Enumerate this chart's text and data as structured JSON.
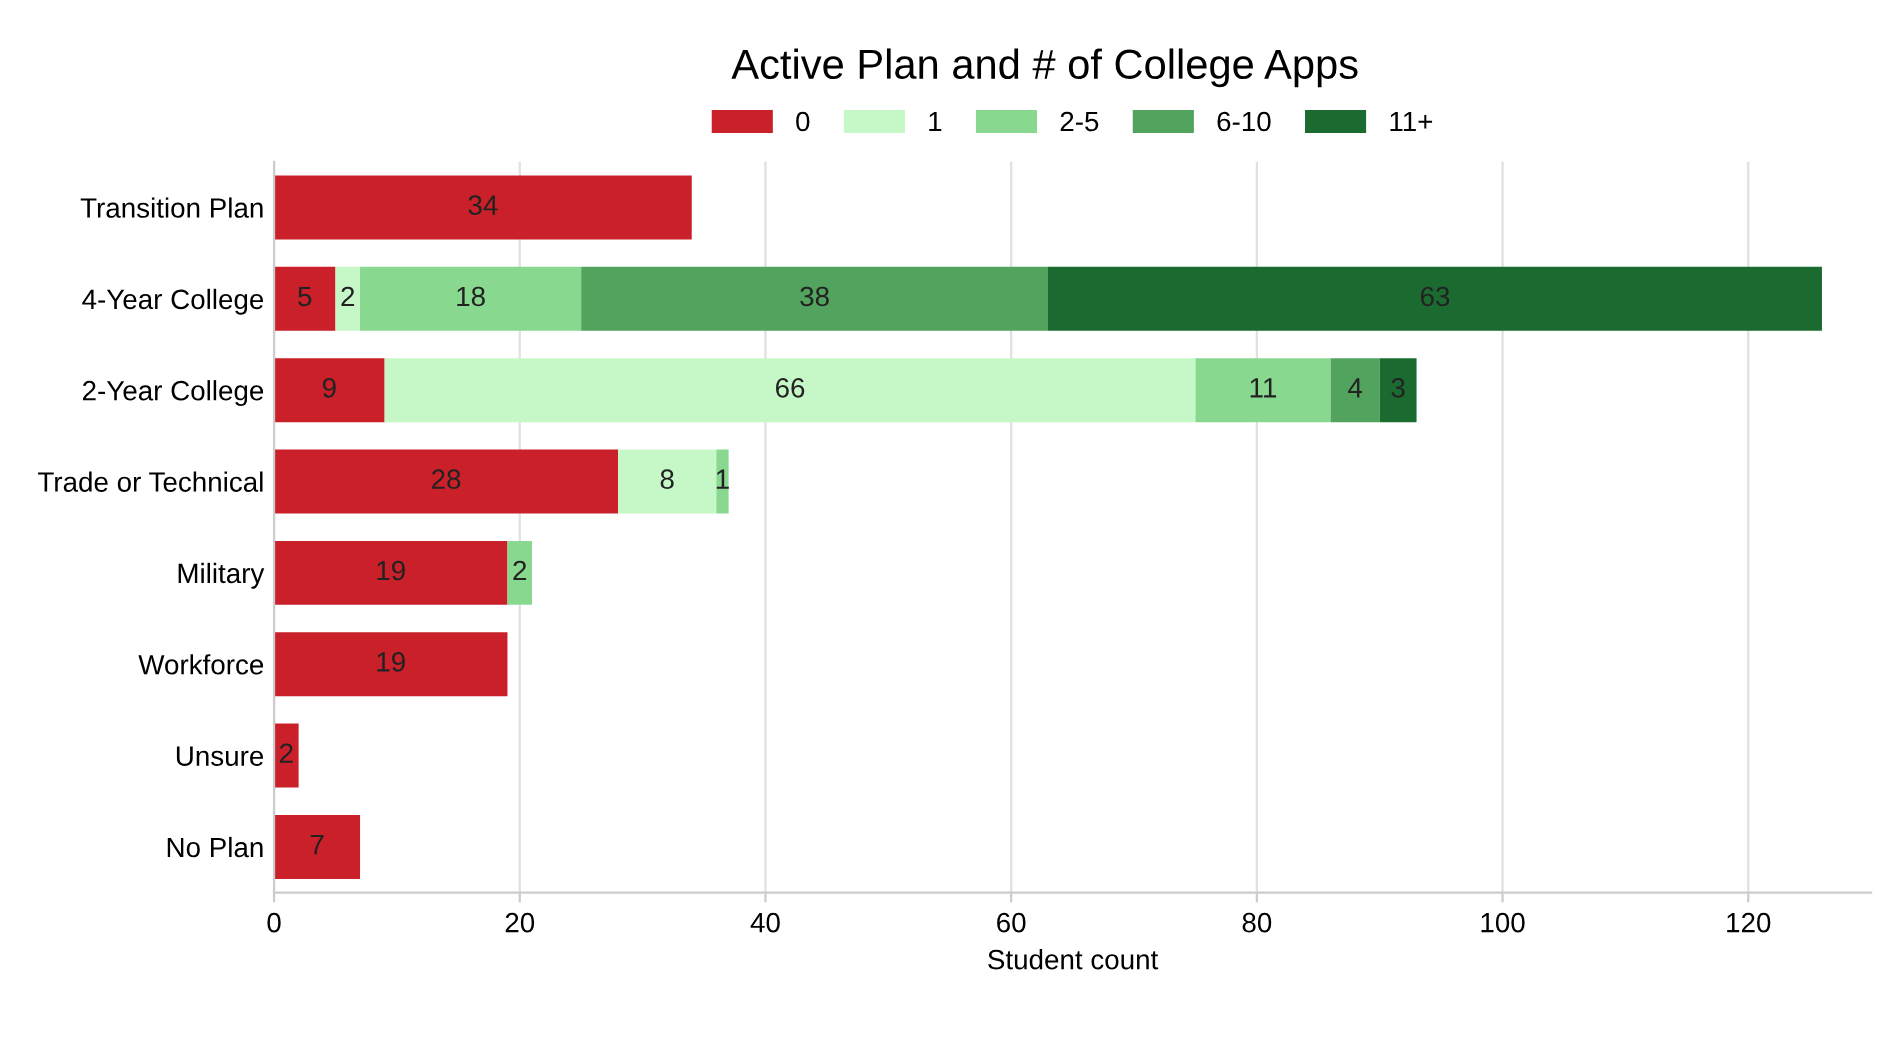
{
  "chart_data": {
    "type": "bar",
    "orientation": "horizontal",
    "stacked": true,
    "title": "Active Plan and # of College Apps",
    "xlabel": "Student count",
    "categories": [
      "Transition Plan",
      "4-Year College",
      "2-Year College",
      "Trade or Technical",
      "Military",
      "Workforce",
      "Unsure",
      "No Plan"
    ],
    "series": [
      {
        "name": "0",
        "color": "#c9202a",
        "values": [
          34,
          5,
          9,
          28,
          19,
          19,
          2,
          7
        ]
      },
      {
        "name": "1",
        "color": "#c6f7c6",
        "values": [
          null,
          2,
          66,
          8,
          null,
          null,
          null,
          null
        ]
      },
      {
        "name": "2-5",
        "color": "#88d88f",
        "values": [
          null,
          18,
          11,
          1,
          2,
          null,
          null,
          null
        ]
      },
      {
        "name": "6-10",
        "color": "#52a35e",
        "values": [
          null,
          38,
          4,
          null,
          null,
          null,
          null,
          null
        ]
      },
      {
        "name": "11+",
        "color": "#1b6b31",
        "values": [
          null,
          63,
          3,
          null,
          null,
          null,
          null,
          null
        ]
      }
    ],
    "xlim": [
      0,
      130
    ],
    "xticks": [
      0,
      20,
      40,
      60,
      80,
      100,
      120
    ],
    "grid": "x",
    "legend": "top",
    "data_labels": true
  }
}
